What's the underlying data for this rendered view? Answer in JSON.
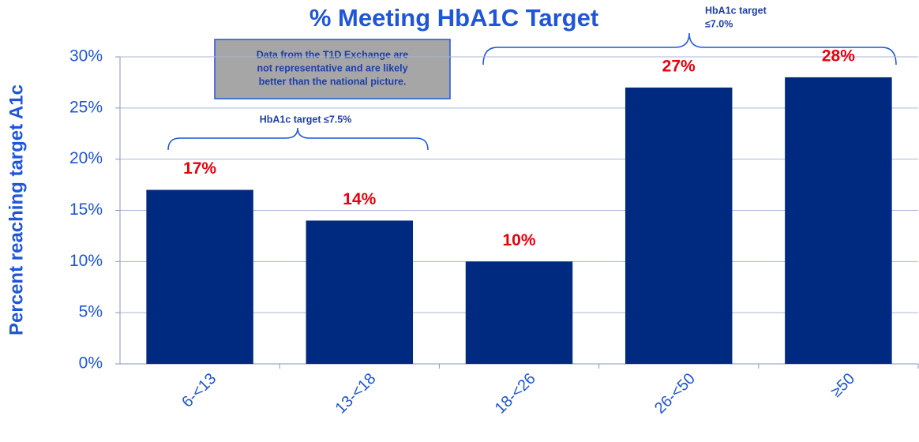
{
  "chart_data": {
    "type": "bar",
    "title": "% Meeting HbA1C Target",
    "y_axis_label": "Percent reaching target A1c",
    "categories": [
      "6-<13",
      "13-<18",
      "18-<26",
      "26-<50",
      "≥50"
    ],
    "values": [
      17,
      14,
      10,
      27,
      28
    ],
    "value_labels": [
      "17%",
      "14%",
      "10%",
      "27%",
      "28%"
    ],
    "color": "#002a7f",
    "ylim": [
      0,
      30
    ],
    "yticks": [
      {
        "value": 0,
        "label": "0%"
      },
      {
        "value": 5,
        "label": "5%"
      },
      {
        "value": 10,
        "label": "10%"
      },
      {
        "value": 15,
        "label": "15%"
      },
      {
        "value": 20,
        "label": "20%"
      },
      {
        "value": 25,
        "label": "25%"
      },
      {
        "value": 30,
        "label": "30%"
      }
    ],
    "grid": true,
    "annotations": {
      "note": [
        "Data from the T1D Exchange are",
        "not representative and are likely",
        "better than the national picture."
      ],
      "target_young": "HbA1c target ≤7.5%",
      "target_adult": [
        "HbA1c target",
        "≤7.0%"
      ]
    }
  }
}
